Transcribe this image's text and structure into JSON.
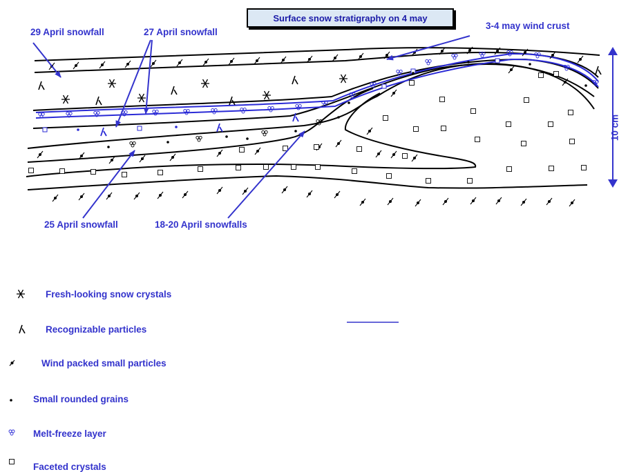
{
  "title": "Surface snow stratigraphy on 4 may",
  "annotations": {
    "snowfall_29_april": "29 April snowfall",
    "snowfall_27_april": "27 April snowfall",
    "wind_crust": "3-4 may wind crust",
    "snowfall_25_april": "25 April snowfall",
    "snowfall_18_20_april": "18-20 April snowfalls"
  },
  "scale": {
    "label": "10 cm"
  },
  "legend": [
    {
      "symbol": "fresh-snow-crystal-icon",
      "label": "Fresh-looking snow crystals"
    },
    {
      "symbol": "recognizable-particle-icon",
      "label": "Recognizable particles"
    },
    {
      "symbol": "wind-packed-particle-icon",
      "label": "Wind packed small particles"
    },
    {
      "symbol": "rounded-grain-icon",
      "label": "Small rounded grains"
    },
    {
      "symbol": "melt-freeze-icon",
      "label": "Melt-freeze layer"
    },
    {
      "symbol": "faceted-crystal-icon",
      "label": "Faceted crystals"
    }
  ],
  "colors": {
    "accent": "#3333cc",
    "line": "#000000",
    "crust_line": "#2a2ad6",
    "title_bg": "#dce8f4"
  }
}
